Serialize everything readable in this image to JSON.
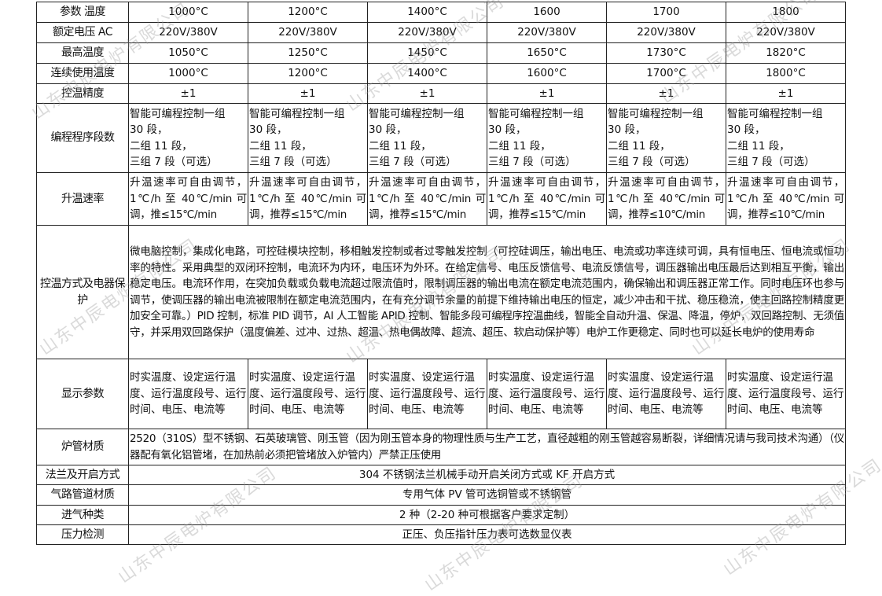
{
  "watermark": "山东中辰电炉有限公司",
  "table": {
    "header": {
      "label": "参数 温度",
      "values": [
        "1000°C",
        "1200°C",
        "1400°C",
        "1600",
        "1700",
        "1800"
      ]
    },
    "rows": [
      {
        "label": "额定电压 AC",
        "values": [
          "220V/380V",
          "220V/380V",
          "220V/380V",
          "220V/380V",
          "220V/380V",
          "220V/380V"
        ]
      },
      {
        "label": "最高温度",
        "values": [
          "1050°C",
          "1250°C",
          "1450°C",
          "1650°C",
          "1730°C",
          "1820°C"
        ]
      },
      {
        "label": "连续使用温度",
        "values": [
          "1000°C",
          "1200°C",
          "1400°C",
          "1600°C",
          "1700°C",
          "1800°C"
        ]
      },
      {
        "label": "控温精度",
        "values": [
          "±1",
          "±1",
          "±1",
          "±1",
          "±1",
          "±1"
        ]
      },
      {
        "label": "编程程序段数",
        "values": [
          "智能可编程控制一组\n30 段，\n二组 11 段，\n三组 7 段（可选）",
          "智能可编程控制一组\n30 段，\n二组 11 段，\n三组 7 段（可选）",
          "智能可编程控制一组\n30 段，\n二组 11 段，\n三组 7 段（可选）",
          "智能可编程控制一组\n30 段，\n二组 11 段，\n三组 7 段（可选）",
          "智能可编程控制一组\n30 段，\n二组 11 段，\n三组 7 段（可选）",
          "智能可编程控制一组\n30 段，\n二组 11 段，\n三组 7 段（可选）"
        ]
      },
      {
        "label": "升温速率",
        "values": [
          "升温速率可自由调节，1℃/h 至 40℃/min 可调，推≤15℃/min",
          "升温速率可自由调节，1℃/h 至 40℃/min 可调，推荐≤15℃/min",
          "升温速率可自由调节，1℃/h 至 40℃/min 可调，推荐≤15℃/min",
          "升温速率可自由调节，1℃/h 至 40℃/min 可调，推荐≤15℃/min",
          "升温速率可自由调节，1℃/h 至 40℃/min 可调，推荐≤10℃/min",
          "升温速率可自由调节，1℃/h 至 40℃/min 可调，推荐≤10℃/min"
        ]
      }
    ],
    "control": {
      "label": "控温方式及电器保护",
      "value": "微电脑控制，集成化电路，可控硅模块控制，移相触发控制或者过零触发控制（可控硅调压，输出电压、电流或功率连续可调，具有恒电压、恒电流或恒功率的特性。采用典型的双闭环控制，电流环为内环，电压环为外环。在给定信号、电压反馈信号、电流反馈信号，调压器输出电压最后达到相互平衡，输出稳定电压。电流环作用，在突加负载或负载电流超过限流值时，限制调压器的输出电流在额定电流范围内，确保输出和调压器正常工作。同时电压环也参与调节，使调压器的输出电流被限制在额定电流范围内，在有充分调节余量的前提下维持输出电压的恒定，减少冲击和干扰、稳压稳流，使主回路控制精度更加安全可靠。）PID 控制，标准 PID 调节，AI 人工智能 APID 控制、智能多段可编程序控温曲线，智能全自动升温、保温、降温，停炉，双回路控制、无须值守，并采用双回路保护（温度偏差、过冲、过热、超温、热电偶故障、超流、超压、软启动保护等）电炉工作更稳定、同时也可以延长电炉的使用寿命"
    },
    "display": {
      "label": "显示参数",
      "values": [
        "时实温度、设定运行温度、运行温度段号、运行时间、电压、电流等",
        "时实温度、设定运行温度、运行温度段号、运行时间、电压、电流等",
        "时实温度、设定运行温度、运行温度段号、运行时间、电压、电流等",
        "时实温度、设定运行温度、运行温度段号、运行时间、电压、电流等",
        "时实温度、设定运行温度、运行温度段号、运行时间、电压、电流等",
        "时实温度、设定运行温度、运行温度段号、运行时间、电压、电流等"
      ]
    },
    "tube": {
      "label": "炉管材质",
      "value": "2520（310S）型不锈钢、石英玻璃管、刚玉管（因为刚玉管本身的物理性质与生产工艺，直径越粗的刚玉管越容易断裂，详细情况请与我司技术沟通）（仪器配有氧化铝管堵，在加热前必须把管堵放入炉管内）严禁正压使用"
    },
    "flange": {
      "label": "法兰及开启方式",
      "value": "304 不锈钢法兰机械手动开启关闭方式或 KF 开启方式"
    },
    "gas_pipe": {
      "label": "气路管道材质",
      "value": "专用气体 PV 管可选铜管或不锈钢管"
    },
    "gas_types": {
      "label": "进气种类",
      "value": "2 种（2-20 种可根据客户要求定制）"
    },
    "pressure": {
      "label": "压力检测",
      "value": "正压、负压指针压力表可选数显仪表"
    }
  }
}
